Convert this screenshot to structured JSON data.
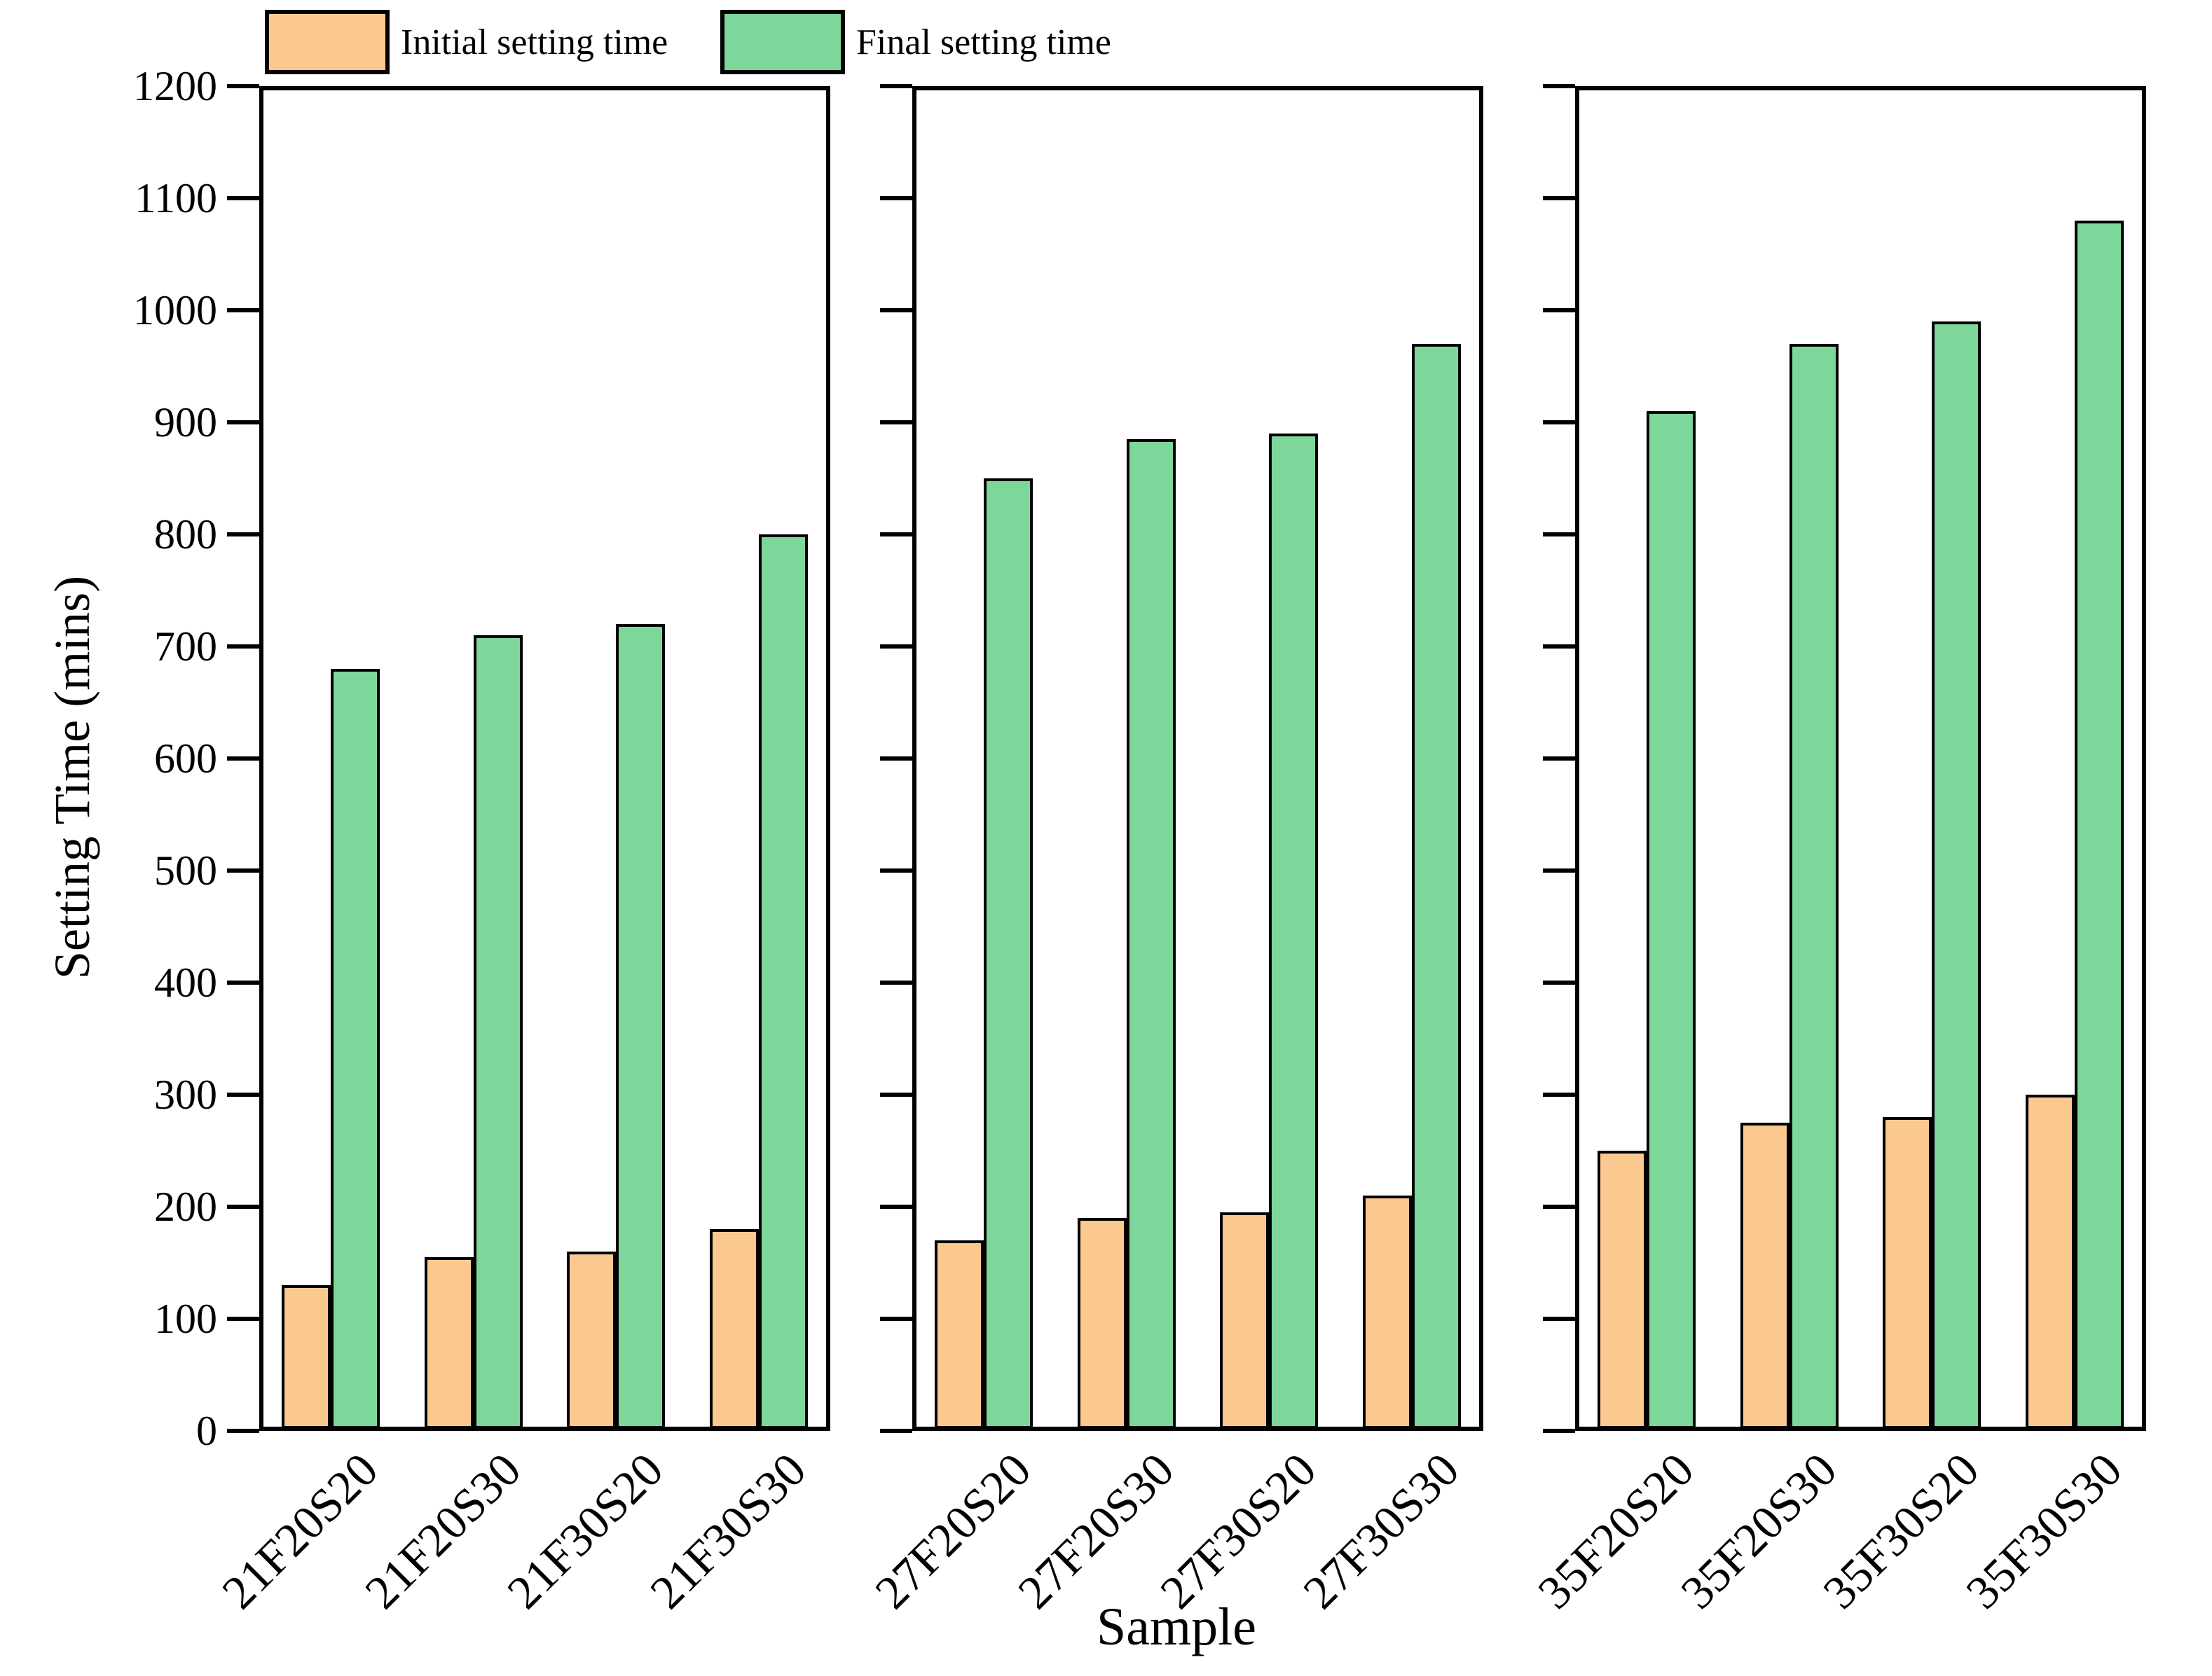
{
  "legend": {
    "initial": {
      "label": "Initial setting time",
      "color": "#FBC890"
    },
    "final": {
      "label": "Final setting time",
      "color": "#7DD79B"
    }
  },
  "axes": {
    "y_title": "Setting Time (mins)",
    "x_title": "Sample",
    "y_tick_values": [
      0,
      100,
      200,
      300,
      400,
      500,
      600,
      700,
      800,
      900,
      1000,
      1100,
      1200
    ],
    "bar_edge_color": "#000000",
    "frame_color": "#000000"
  },
  "chart_data": {
    "type": "bar",
    "title": "",
    "ylabel": "Setting Time (mins)",
    "xlabel": "Sample",
    "ylim": [
      0,
      1200
    ],
    "y_tick_step": 100,
    "grid": false,
    "legend_position": "top-left",
    "series_names": [
      "Initial setting time",
      "Final setting time"
    ],
    "panels": [
      {
        "categories": [
          "21F20S20",
          "21F20S30",
          "21F30S20",
          "21F30S30"
        ],
        "series": [
          {
            "name": "Initial setting time",
            "values": [
              130,
              155,
              160,
              180
            ]
          },
          {
            "name": "Final setting time",
            "values": [
              680,
              710,
              720,
              800
            ]
          }
        ]
      },
      {
        "categories": [
          "27F20S20",
          "27F20S30",
          "27F30S20",
          "27F30S30"
        ],
        "series": [
          {
            "name": "Initial setting time",
            "values": [
              170,
              190,
              195,
              210
            ]
          },
          {
            "name": "Final setting time",
            "values": [
              850,
              885,
              890,
              970
            ]
          }
        ]
      },
      {
        "categories": [
          "35F20S20",
          "35F20S30",
          "35F30S20",
          "35F30S30"
        ],
        "series": [
          {
            "name": "Initial setting time",
            "values": [
              250,
              275,
              280,
              300
            ]
          },
          {
            "name": "Final setting time",
            "values": [
              910,
              970,
              990,
              1080
            ]
          }
        ]
      }
    ]
  }
}
